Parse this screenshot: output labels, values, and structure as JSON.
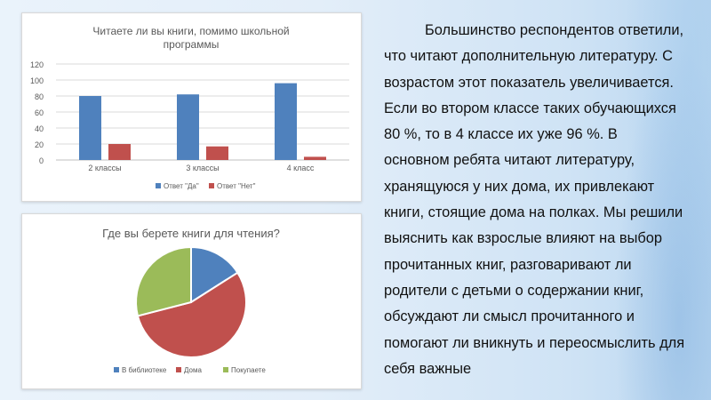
{
  "colors": {
    "series_yes": "#4f81bd",
    "series_no": "#c0504d",
    "slice_library": "#4f81bd",
    "slice_home": "#c0504d",
    "slice_buy": "#9bbb59"
  },
  "chart_data": [
    {
      "type": "bar",
      "title": "Читаете ли вы книги, помимо школьной программы",
      "categories": [
        "2 классы",
        "3 классы",
        "4 класс"
      ],
      "series": [
        {
          "name": "Ответ \"Да\"",
          "values": [
            80,
            82,
            96
          ]
        },
        {
          "name": "Ответ \"Нет\"",
          "values": [
            20,
            17,
            4
          ]
        }
      ],
      "ylim": [
        0,
        120
      ],
      "yticks": [
        0,
        20,
        40,
        60,
        80,
        100,
        120
      ],
      "grid": true,
      "legend": "bottom"
    },
    {
      "type": "pie",
      "title": "Где вы берете книги для чтения?",
      "labels": [
        "В библиотеке",
        "Дома",
        "Покупаете"
      ],
      "values": [
        16,
        55,
        29
      ],
      "legend": "bottom"
    }
  ],
  "text": {
    "paragraph": "Большинство респондентов ответили, что читают дополнительную литературу. С возрастом этот показатель увеличивается. Если во втором классе таких обучающихся 80 %, то в 4 классе их уже 96 %. В основном ребята читают литературу, хранящуюся у них дома, их привлекают книги, стоящие дома на полках. Мы решили выяснить как взрослые влияют на выбор прочитанных книг, разговаривают ли родители с детьми о содержании книг, обсуждают ли смысл прочитанного и помогают ли вникнуть и переосмыслить для себя важные"
  }
}
